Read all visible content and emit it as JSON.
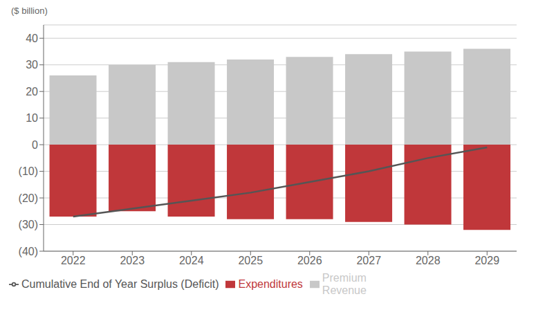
{
  "chart_data": {
    "type": "bar",
    "ylabel": "($ billion)",
    "categories": [
      "2022",
      "2023",
      "2024",
      "2025",
      "2026",
      "2027",
      "2028",
      "2029"
    ],
    "series": [
      {
        "name": "Premium\nRevenue",
        "type": "bar",
        "color": "#c8c8c8",
        "values": [
          26,
          30,
          31,
          32,
          33,
          34,
          35,
          36
        ]
      },
      {
        "name": "Expenditures",
        "type": "bar",
        "color": "#c0373a",
        "values": [
          -27,
          -25,
          -27,
          -28,
          -28,
          -29,
          -30,
          -32
        ]
      },
      {
        "name": "Cumulative End of Year Surplus (Deficit)",
        "type": "line",
        "color": "#555555",
        "values": [
          -27,
          -24,
          -21,
          -18,
          -14,
          -10,
          -5,
          -1
        ]
      }
    ],
    "ylim": [
      -40,
      45
    ],
    "yticks": [
      40,
      30,
      20,
      10,
      0,
      {
        "value": -10,
        "label": "(10)"
      },
      {
        "value": -20,
        "label": "(20)"
      },
      {
        "value": -30,
        "label": "(30)"
      },
      {
        "value": -40,
        "label": "(40)"
      }
    ],
    "grid": true,
    "legend": "bottom"
  }
}
